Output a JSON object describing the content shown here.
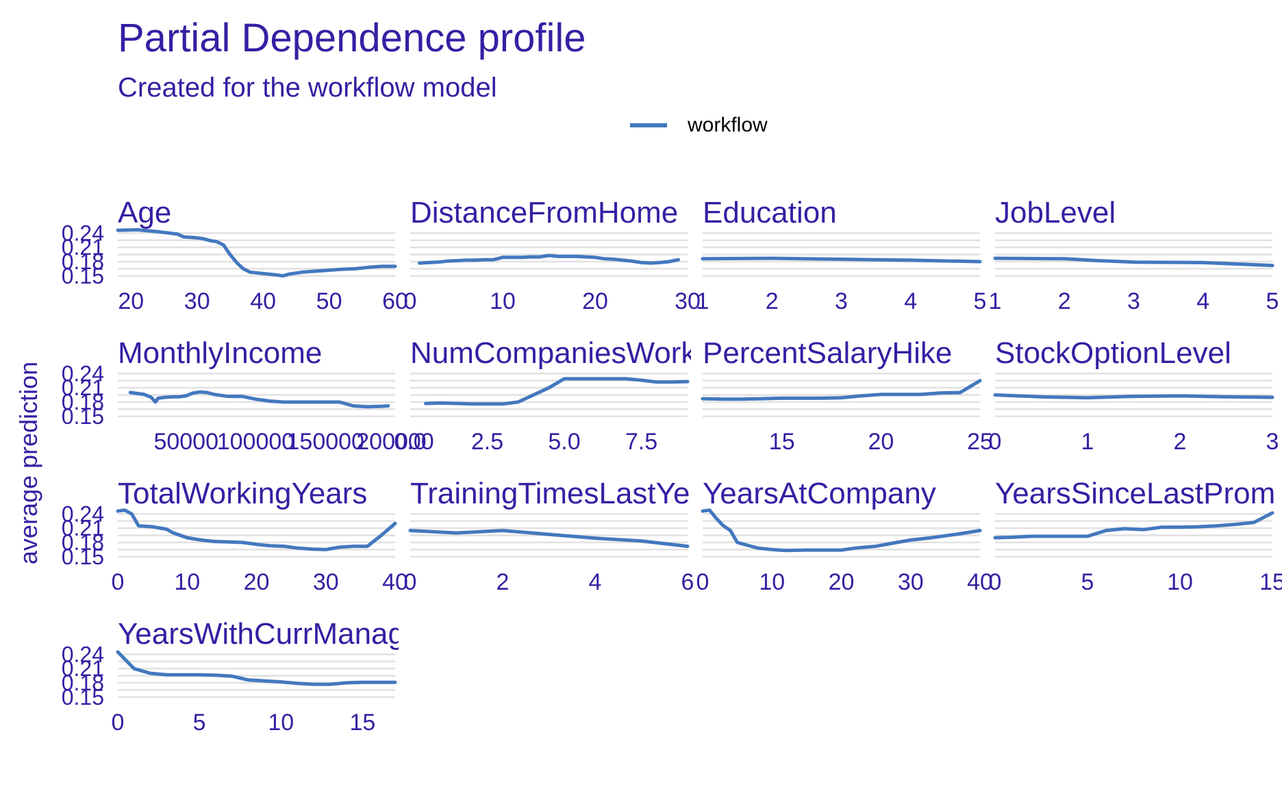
{
  "title": "Partial Dependence profile",
  "subtitle": "Created for the workflow model",
  "legend": {
    "label": "workflow",
    "color": "#4378bf"
  },
  "ylabel": "average prediction",
  "colors": {
    "text": "#371ea3",
    "line": "#4378bf",
    "grid": "#e1e1e1"
  },
  "chart_data": {
    "type": "line",
    "series_name": "workflow",
    "y_ticks": [
      0.15,
      0.18,
      0.21,
      0.24
    ],
    "ylim": [
      0.144,
      0.252
    ],
    "panels": [
      {
        "name": "Age",
        "xlim": [
          18,
          60
        ],
        "x_ticks": [
          20,
          30,
          40,
          50,
          60
        ],
        "x_tick_labels": [
          "20",
          "30",
          "40",
          "50",
          "60"
        ],
        "x": [
          18,
          21,
          24,
          27,
          28,
          30,
          31,
          32,
          33,
          34,
          35,
          36,
          37,
          38,
          40,
          42,
          43,
          44,
          46,
          48,
          50,
          52,
          54,
          56,
          58,
          60
        ],
        "y": [
          0.246,
          0.247,
          0.243,
          0.238,
          0.232,
          0.23,
          0.228,
          0.224,
          0.222,
          0.215,
          0.195,
          0.178,
          0.165,
          0.158,
          0.155,
          0.152,
          0.15,
          0.154,
          0.158,
          0.16,
          0.162,
          0.164,
          0.165,
          0.168,
          0.17,
          0.17
        ]
      },
      {
        "name": "DistanceFromHome",
        "xlim": [
          0,
          30
        ],
        "x_ticks": [
          0,
          10,
          20,
          30
        ],
        "x_tick_labels": [
          "0",
          "10",
          "20",
          "30"
        ],
        "x": [
          1,
          2,
          3,
          4,
          5,
          6,
          7,
          8,
          9,
          10,
          11,
          12,
          13,
          14,
          15,
          16,
          17,
          18,
          19,
          20,
          21,
          22,
          23,
          24,
          25,
          26,
          27,
          28,
          29
        ],
        "y": [
          0.177,
          0.178,
          0.179,
          0.181,
          0.182,
          0.183,
          0.183,
          0.184,
          0.184,
          0.189,
          0.189,
          0.189,
          0.19,
          0.19,
          0.193,
          0.191,
          0.191,
          0.191,
          0.19,
          0.189,
          0.186,
          0.185,
          0.183,
          0.181,
          0.178,
          0.177,
          0.178,
          0.18,
          0.184
        ]
      },
      {
        "name": "Education",
        "xlim": [
          1,
          5
        ],
        "x_ticks": [
          1,
          2,
          3,
          4,
          5
        ],
        "x_tick_labels": [
          "1",
          "2",
          "3",
          "4",
          "5"
        ],
        "x": [
          1,
          2,
          3,
          4,
          5
        ],
        "y": [
          0.186,
          0.187,
          0.185,
          0.183,
          0.18
        ]
      },
      {
        "name": "JobLevel",
        "xlim": [
          1,
          5
        ],
        "x_ticks": [
          1,
          2,
          3,
          4,
          5
        ],
        "x_tick_labels": [
          "1",
          "2",
          "3",
          "4",
          "5"
        ],
        "x": [
          1,
          2,
          2.5,
          3,
          4,
          4.5,
          5
        ],
        "y": [
          0.187,
          0.186,
          0.182,
          0.179,
          0.178,
          0.175,
          0.172
        ]
      },
      {
        "name": "MonthlyIncome",
        "xlim": [
          1000,
          200000
        ],
        "x_ticks": [
          50000,
          100000,
          150000,
          200000
        ],
        "x_tick_labels": [
          "50000",
          "100000",
          "150000",
          "200000"
        ],
        "x": [
          10000,
          20000,
          25000,
          28000,
          30000,
          35000,
          40000,
          45000,
          50000,
          55000,
          60000,
          65000,
          70000,
          80000,
          90000,
          100000,
          110000,
          120000,
          130000,
          140000,
          150000,
          160000,
          170000,
          180000,
          190000,
          195000
        ],
        "y": [
          0.2,
          0.196,
          0.19,
          0.18,
          0.188,
          0.19,
          0.191,
          0.191,
          0.193,
          0.199,
          0.201,
          0.2,
          0.196,
          0.192,
          0.192,
          0.186,
          0.182,
          0.18,
          0.18,
          0.18,
          0.18,
          0.18,
          0.172,
          0.17,
          0.171,
          0.172
        ]
      },
      {
        "name": "NumCompaniesWorked",
        "xlim": [
          0,
          9
        ],
        "x_ticks": [
          0,
          2.5,
          5,
          7.5
        ],
        "x_tick_labels": [
          "0.0",
          "2.5",
          "5.0",
          "7.5"
        ],
        "x": [
          0.5,
          1,
          2,
          3,
          3.5,
          4,
          4.5,
          5,
          5.5,
          6,
          6.5,
          7,
          7.5,
          8,
          8.5,
          9
        ],
        "y": [
          0.177,
          0.178,
          0.176,
          0.176,
          0.18,
          0.195,
          0.21,
          0.229,
          0.229,
          0.229,
          0.229,
          0.229,
          0.226,
          0.222,
          0.222,
          0.223
        ]
      },
      {
        "name": "PercentSalaryHike",
        "xlim": [
          11,
          25
        ],
        "x_ticks": [
          15,
          20,
          25
        ],
        "x_tick_labels": [
          "15",
          "20",
          "25"
        ],
        "x": [
          11,
          12,
          13,
          14,
          15,
          16,
          17,
          18,
          19,
          20,
          21,
          22,
          23,
          24,
          25
        ],
        "y": [
          0.187,
          0.186,
          0.186,
          0.187,
          0.188,
          0.188,
          0.188,
          0.189,
          0.193,
          0.196,
          0.196,
          0.196,
          0.199,
          0.2,
          0.225
        ]
      },
      {
        "name": "StockOptionLevel",
        "xlim": [
          0,
          3
        ],
        "x_ticks": [
          0,
          1,
          2,
          3
        ],
        "x_tick_labels": [
          "0",
          "1",
          "2",
          "3"
        ],
        "x": [
          0,
          0.5,
          1,
          1.5,
          2,
          2.5,
          3
        ],
        "y": [
          0.195,
          0.191,
          0.189,
          0.192,
          0.193,
          0.191,
          0.19
        ]
      },
      {
        "name": "TotalWorkingYears",
        "xlim": [
          0,
          40
        ],
        "x_ticks": [
          0,
          10,
          20,
          30,
          40
        ],
        "x_tick_labels": [
          "0",
          "10",
          "20",
          "30",
          "40"
        ],
        "x": [
          0,
          1,
          2,
          3,
          5,
          7,
          8,
          10,
          12,
          14,
          16,
          18,
          20,
          22,
          24,
          26,
          28,
          30,
          32,
          34,
          36,
          38,
          40
        ],
        "y": [
          0.246,
          0.248,
          0.24,
          0.215,
          0.213,
          0.208,
          0.2,
          0.19,
          0.185,
          0.182,
          0.181,
          0.18,
          0.176,
          0.173,
          0.172,
          0.168,
          0.166,
          0.165,
          0.17,
          0.172,
          0.172,
          0.195,
          0.22
        ]
      },
      {
        "name": "TrainingTimesLastYear",
        "xlim": [
          0,
          6
        ],
        "x_ticks": [
          0,
          2,
          4,
          6
        ],
        "x_tick_labels": [
          "0",
          "2",
          "4",
          "6"
        ],
        "x": [
          0,
          1,
          2,
          3,
          4,
          5,
          6
        ],
        "y": [
          0.205,
          0.2,
          0.205,
          0.197,
          0.189,
          0.183,
          0.172
        ]
      },
      {
        "name": "YearsAtCompany",
        "xlim": [
          0,
          40
        ],
        "x_ticks": [
          0,
          10,
          20,
          30,
          40
        ],
        "x_tick_labels": [
          "0",
          "10",
          "20",
          "30",
          "40"
        ],
        "x": [
          0,
          1,
          2,
          3,
          4,
          5,
          7,
          8,
          10,
          12,
          15,
          18,
          20,
          22,
          25,
          28,
          30,
          33,
          35,
          37,
          40
        ],
        "y": [
          0.246,
          0.248,
          0.23,
          0.215,
          0.205,
          0.18,
          0.172,
          0.168,
          0.165,
          0.163,
          0.164,
          0.164,
          0.164,
          0.168,
          0.172,
          0.18,
          0.185,
          0.19,
          0.194,
          0.198,
          0.205
        ]
      },
      {
        "name": "YearsSinceLastPromotion",
        "xlim": [
          0,
          15
        ],
        "x_ticks": [
          0,
          5,
          10,
          15
        ],
        "x_tick_labels": [
          "0",
          "5",
          "10",
          "15"
        ],
        "x": [
          0,
          1,
          2,
          3,
          4,
          5,
          6,
          7,
          8,
          9,
          10,
          11,
          12,
          13,
          14,
          15
        ],
        "y": [
          0.19,
          0.191,
          0.193,
          0.193,
          0.193,
          0.193,
          0.205,
          0.209,
          0.207,
          0.212,
          0.212,
          0.213,
          0.215,
          0.218,
          0.222,
          0.242
        ]
      },
      {
        "name": "YearsWithCurrManager",
        "xlim": [
          0,
          17
        ],
        "x_ticks": [
          0,
          5,
          10,
          15
        ],
        "x_tick_labels": [
          "0",
          "5",
          "10",
          "15"
        ],
        "x": [
          0,
          1,
          2,
          3,
          4,
          5,
          6,
          7,
          8,
          9,
          10,
          11,
          12,
          13,
          14,
          15,
          16,
          17
        ],
        "y": [
          0.245,
          0.21,
          0.2,
          0.197,
          0.197,
          0.197,
          0.196,
          0.194,
          0.186,
          0.184,
          0.182,
          0.179,
          0.177,
          0.177,
          0.18,
          0.181,
          0.181,
          0.181
        ]
      }
    ]
  }
}
